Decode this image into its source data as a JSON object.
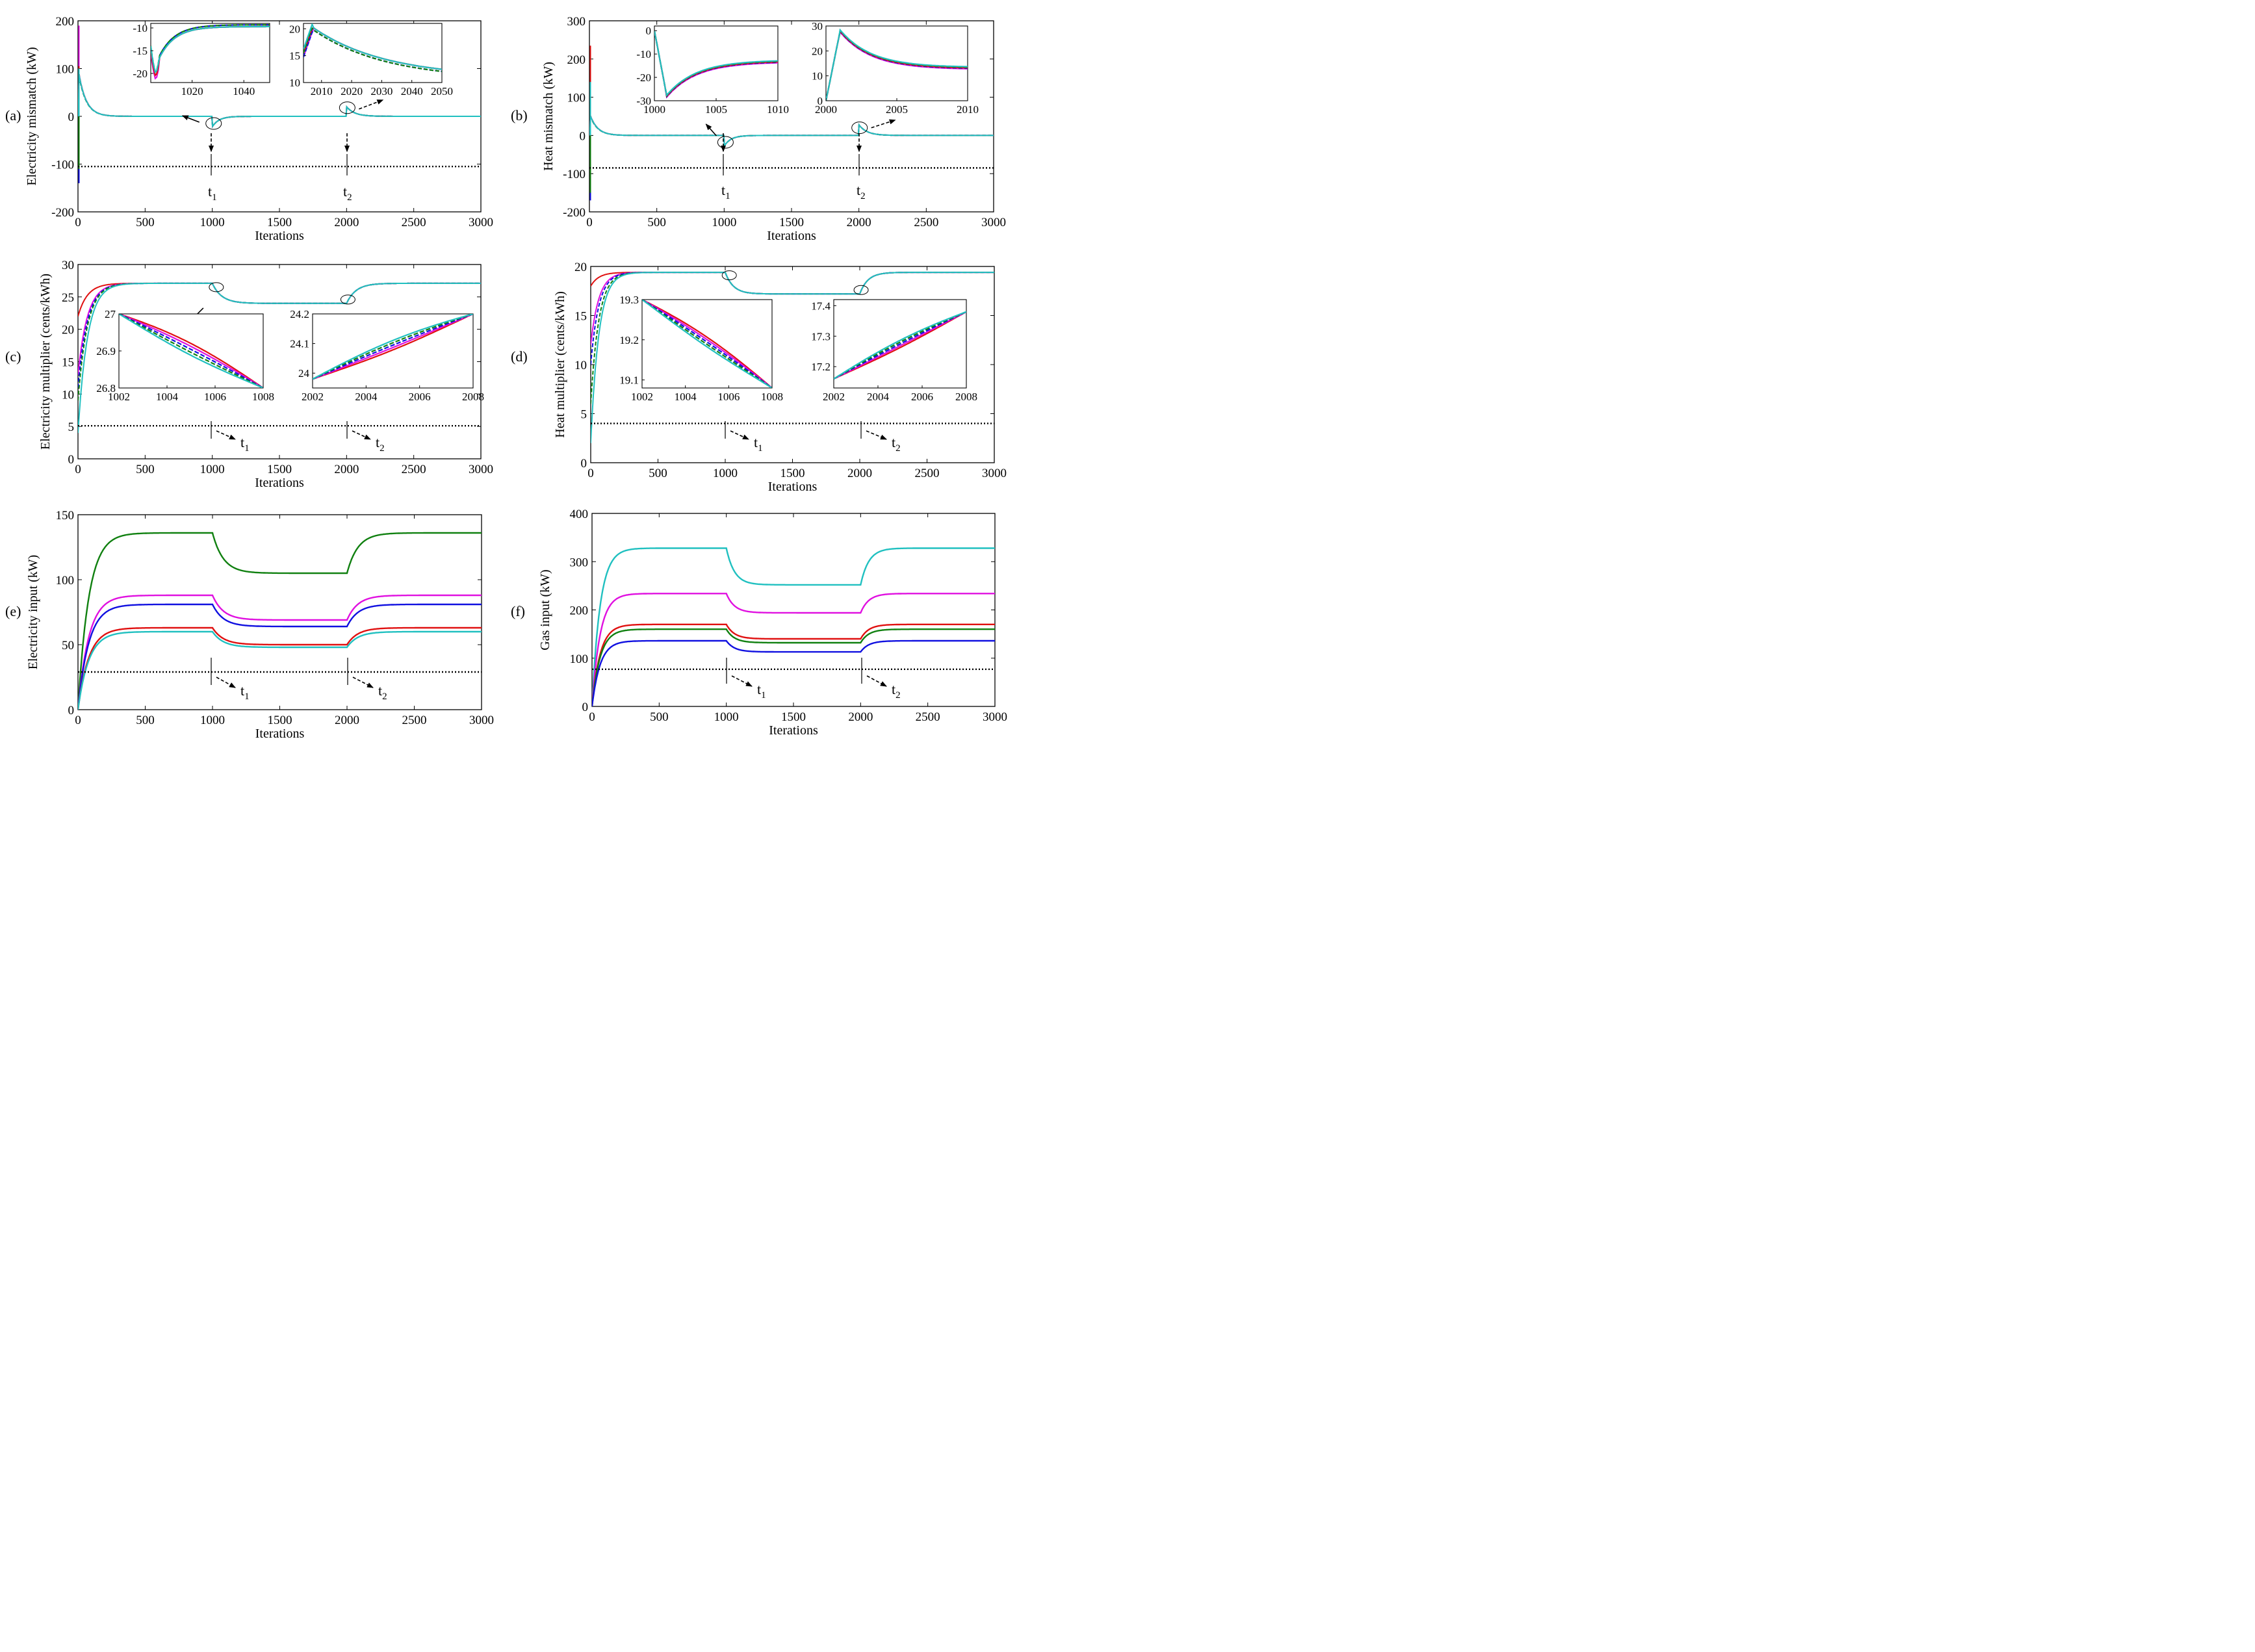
{
  "colors": {
    "red": "#e01010",
    "green": "#108010",
    "blue": "#1010e0",
    "magenta": "#e010e0",
    "cyan": "#20c0c0",
    "black": "#000000"
  },
  "chart_data": [
    {
      "id": "a",
      "panel_label": "(a)",
      "type": "line",
      "xlabel": "Iterations",
      "ylabel": "Electricity  mismatch (kW)",
      "xlim": [
        0,
        3000
      ],
      "ylim": [
        -200,
        200
      ],
      "xticks": [
        "0",
        "500",
        "1000",
        "1500",
        "2000",
        "2500",
        "3000"
      ],
      "yticks": [
        "-200",
        "-100",
        "0",
        "100",
        "200"
      ],
      "event_labels": [
        "t",
        "1",
        "t",
        "2"
      ],
      "reference_line": {
        "y": -105,
        "style": "dotted"
      },
      "insets": [
        {
          "xticks": [
            "1020",
            "1040"
          ],
          "yticks": [
            "-10",
            "-15",
            "-20"
          ],
          "xlim": [
            1004,
            1050
          ],
          "ylim": [
            -22,
            -9
          ]
        },
        {
          "xticks": [
            "2010",
            "2020",
            "2030",
            "2040",
            "2050"
          ],
          "yticks": [
            "20",
            "15",
            "10"
          ],
          "xlim": [
            2004,
            2050
          ],
          "ylim": [
            10,
            21
          ]
        }
      ]
    },
    {
      "id": "b",
      "panel_label": "(b)",
      "type": "line",
      "xlabel": "Iterations",
      "ylabel": "Heat mismatch (kW)",
      "xlim": [
        0,
        3000
      ],
      "ylim": [
        -200,
        300
      ],
      "xticks": [
        "0",
        "500",
        "1000",
        "1500",
        "2000",
        "2500",
        "3000"
      ],
      "yticks": [
        "-200",
        "-100",
        "0",
        "100",
        "200",
        "300"
      ],
      "event_labels": [
        "t",
        "1",
        "t",
        "2"
      ],
      "reference_line": {
        "y": -85,
        "style": "dotted"
      },
      "insets": [
        {
          "xticks": [
            "1000",
            "1005",
            "1010"
          ],
          "yticks": [
            "0",
            "-10",
            "-20",
            "-30"
          ],
          "xlim": [
            1000,
            1010
          ],
          "ylim": [
            -30,
            2
          ]
        },
        {
          "xticks": [
            "2000",
            "2005",
            "2010"
          ],
          "yticks": [
            "30",
            "20",
            "10",
            "0"
          ],
          "xlim": [
            2000,
            2010
          ],
          "ylim": [
            0,
            30
          ]
        }
      ]
    },
    {
      "id": "c",
      "panel_label": "(c)",
      "type": "line",
      "xlabel": "Iterations",
      "ylabel": "Electricity multiplier (cents/kWh)",
      "xlim": [
        0,
        3000
      ],
      "ylim": [
        0,
        30
      ],
      "xticks": [
        "0",
        "500",
        "1000",
        "1500",
        "2000",
        "2500",
        "3000"
      ],
      "yticks": [
        "0",
        "5",
        "10",
        "15",
        "20",
        "25",
        "30"
      ],
      "event_labels": [
        "t",
        "1",
        "t",
        "2"
      ],
      "reference_line": {
        "y": 5.1,
        "style": "dotted"
      },
      "insets": [
        {
          "xticks": [
            "1002",
            "1004",
            "1006",
            "1008"
          ],
          "yticks": [
            "27",
            "26.9",
            "26.8"
          ],
          "xlim": [
            1002,
            1008
          ],
          "ylim": [
            26.8,
            27.0
          ]
        },
        {
          "xticks": [
            "2002",
            "2004",
            "2006",
            "2008"
          ],
          "yticks": [
            "24.2",
            "24.1",
            "24"
          ],
          "xlim": [
            2002,
            2008
          ],
          "ylim": [
            23.95,
            24.2
          ]
        }
      ]
    },
    {
      "id": "d",
      "panel_label": "(d)",
      "type": "line",
      "xlabel": "Iterations",
      "ylabel": "Heat multiplier (cents/kWh)",
      "xlim": [
        0,
        3000
      ],
      "ylim": [
        0,
        20
      ],
      "xticks": [
        "0",
        "500",
        "1000",
        "1500",
        "2000",
        "2500",
        "3000"
      ],
      "yticks": [
        "0",
        "5",
        "10",
        "15",
        "20"
      ],
      "event_labels": [
        "t",
        "1",
        "t",
        "2"
      ],
      "reference_line": {
        "y": 4.0,
        "style": "dotted"
      },
      "insets": [
        {
          "xticks": [
            "1002",
            "1004",
            "1006",
            "1008"
          ],
          "yticks": [
            "19.3",
            "19.2",
            "19.1"
          ],
          "xlim": [
            1002,
            1008
          ],
          "ylim": [
            19.08,
            19.3
          ]
        },
        {
          "xticks": [
            "2002",
            "2004",
            "2006",
            "2008"
          ],
          "yticks": [
            "17.4",
            "17.3",
            "17.2"
          ],
          "xlim": [
            2002,
            2008
          ],
          "ylim": [
            17.13,
            17.42
          ]
        }
      ]
    },
    {
      "id": "e",
      "panel_label": "(e)",
      "type": "line",
      "xlabel": "Iterations",
      "ylabel": "Electricity  input (kW)",
      "xlim": [
        0,
        3000
      ],
      "ylim": [
        0,
        150
      ],
      "xticks": [
        "0",
        "500",
        "1000",
        "1500",
        "2000",
        "2500",
        "3000"
      ],
      "yticks": [
        "0",
        "50",
        "100",
        "150"
      ],
      "event_labels": [
        "t",
        "1",
        "t",
        "2"
      ],
      "reference_line": {
        "y": 29,
        "style": "dotted"
      },
      "series": [
        {
          "name": "green",
          "levels": [
            136,
            105,
            136
          ]
        },
        {
          "name": "magenta",
          "levels": [
            88,
            69,
            88
          ]
        },
        {
          "name": "blue",
          "levels": [
            81,
            64,
            81
          ]
        },
        {
          "name": "red",
          "levels": [
            63,
            50,
            63
          ]
        },
        {
          "name": "cyan",
          "levels": [
            60,
            48,
            60
          ]
        }
      ]
    },
    {
      "id": "f",
      "panel_label": "(f)",
      "type": "line",
      "xlabel": "Iterations",
      "ylabel": "Gas input (kW)",
      "xlim": [
        0,
        3000
      ],
      "ylim": [
        0,
        400
      ],
      "xticks": [
        "0",
        "500",
        "1000",
        "1500",
        "2000",
        "2500",
        "3000"
      ],
      "yticks": [
        "0",
        "100",
        "200",
        "300",
        "400"
      ],
      "event_labels": [
        "t",
        "1",
        "t",
        "2"
      ],
      "reference_line": {
        "y": 77,
        "style": "dotted"
      },
      "series": [
        {
          "name": "cyan",
          "levels": [
            328,
            252,
            328
          ]
        },
        {
          "name": "magenta",
          "levels": [
            234,
            194,
            234
          ]
        },
        {
          "name": "red",
          "levels": [
            170,
            140,
            170
          ]
        },
        {
          "name": "green",
          "levels": [
            160,
            132,
            160
          ]
        },
        {
          "name": "blue",
          "levels": [
            136,
            113,
            136
          ]
        }
      ]
    }
  ]
}
